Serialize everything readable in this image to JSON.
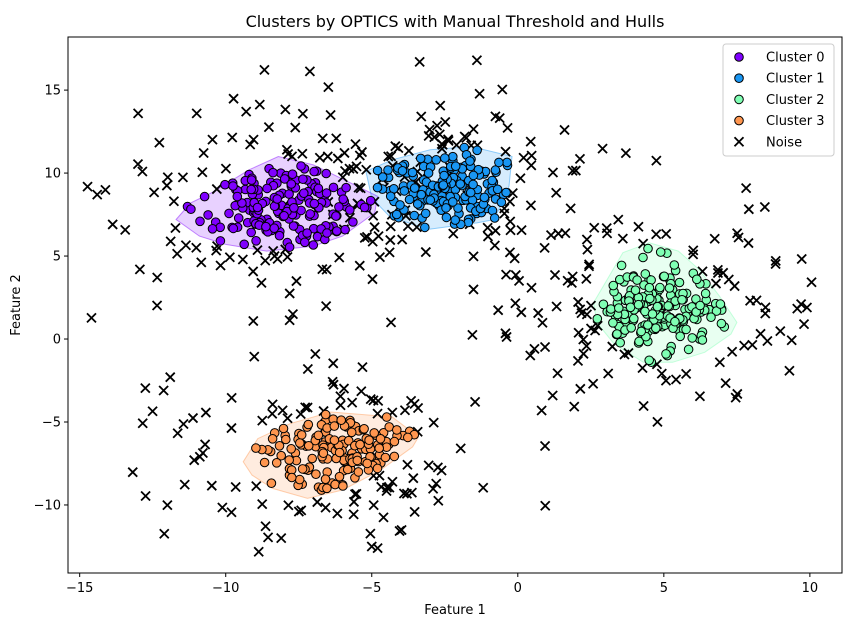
{
  "chart_data": {
    "type": "scatter",
    "title": "Clusters by OPTICS with Manual Threshold and Hulls",
    "xlabel": "Feature 1",
    "ylabel": "Feature 2",
    "xlim": [
      -15.4,
      11.1
    ],
    "ylim": [
      -14.1,
      18.2
    ],
    "xticks": [
      -15,
      -10,
      -5,
      0,
      5,
      10
    ],
    "yticks": [
      -10,
      -5,
      0,
      5,
      10,
      15
    ],
    "grid": false,
    "legend_position": "top-right",
    "clusters": [
      {
        "name": "Cluster 0",
        "color": "#8000ff",
        "center": [
          -8.0,
          8.0
        ],
        "spread": [
          1.4,
          1.5
        ],
        "count": 170,
        "seed": 11,
        "hull": [
          [
            -11.7,
            7.2
          ],
          [
            -11.2,
            8.2
          ],
          [
            -10.5,
            8.8
          ],
          [
            -9.2,
            10.2
          ],
          [
            -8.2,
            11.0
          ],
          [
            -7.0,
            10.5
          ],
          [
            -5.6,
            9.3
          ],
          [
            -4.8,
            8.6
          ],
          [
            -4.9,
            7.6
          ],
          [
            -6.0,
            6.2
          ],
          [
            -7.0,
            5.6
          ],
          [
            -8.6,
            5.3
          ],
          [
            -10.0,
            5.7
          ],
          [
            -10.9,
            6.2
          ]
        ]
      },
      {
        "name": "Cluster 1",
        "color": "#1996f3",
        "center": [
          -2.4,
          8.9
        ],
        "spread": [
          1.4,
          1.3
        ],
        "count": 170,
        "seed": 23,
        "hull": [
          [
            -5.2,
            10.1
          ],
          [
            -4.3,
            10.8
          ],
          [
            -3.0,
            11.4
          ],
          [
            -1.6,
            11.6
          ],
          [
            -0.2,
            11.0
          ],
          [
            -0.3,
            9.2
          ],
          [
            -0.8,
            7.2
          ],
          [
            -1.4,
            7.0
          ],
          [
            -3.1,
            6.6
          ],
          [
            -4.4,
            7.4
          ],
          [
            -5.0,
            8.5
          ]
        ]
      },
      {
        "name": "Cluster 2",
        "color": "#80ffb4",
        "center": [
          4.9,
          1.9
        ],
        "spread": [
          1.2,
          1.5
        ],
        "count": 190,
        "seed": 37,
        "hull": [
          [
            2.6,
            2.2
          ],
          [
            3.1,
            3.7
          ],
          [
            3.6,
            5.2
          ],
          [
            4.5,
            5.8
          ],
          [
            5.5,
            5.3
          ],
          [
            6.2,
            4.2
          ],
          [
            6.9,
            2.6
          ],
          [
            7.5,
            1.0
          ],
          [
            7.3,
            0.3
          ],
          [
            6.4,
            -0.8
          ],
          [
            5.3,
            -1.4
          ],
          [
            4.3,
            -1.4
          ],
          [
            3.3,
            -0.3
          ],
          [
            2.7,
            1.0
          ]
        ]
      },
      {
        "name": "Cluster 3",
        "color": "#ff964f",
        "center": [
          -6.3,
          -6.7
        ],
        "spread": [
          1.6,
          1.2
        ],
        "count": 160,
        "seed": 53,
        "hull": [
          [
            -9.4,
            -7.4
          ],
          [
            -8.9,
            -6.0
          ],
          [
            -7.8,
            -5.1
          ],
          [
            -6.4,
            -4.4
          ],
          [
            -4.3,
            -4.7
          ],
          [
            -3.4,
            -5.9
          ],
          [
            -3.6,
            -6.5
          ],
          [
            -4.7,
            -7.9
          ],
          [
            -6.0,
            -9.1
          ],
          [
            -7.2,
            -9.6
          ],
          [
            -8.4,
            -9.0
          ],
          [
            -9.1,
            -8.2
          ]
        ]
      }
    ],
    "noise": {
      "name": "Noise",
      "color": "#000000",
      "seed": 97,
      "groups": [
        {
          "center": [
            -8.0,
            8.0
          ],
          "spread": [
            2.9,
            3.0
          ],
          "count": 110,
          "exclude_r": 1.0
        },
        {
          "center": [
            -2.4,
            9.2
          ],
          "spread": [
            2.2,
            2.4
          ],
          "count": 75,
          "exclude_r": 1.0
        },
        {
          "center": [
            4.8,
            1.9
          ],
          "spread": [
            2.7,
            2.8
          ],
          "count": 110,
          "exclude_r": 1.0
        },
        {
          "center": [
            -6.3,
            -6.9
          ],
          "spread": [
            2.6,
            2.6
          ],
          "count": 100,
          "exclude_r": 1.0
        }
      ],
      "extra_points": [
        [
          -1.4,
          16.8
        ],
        [
          -13.0,
          13.6
        ],
        [
          -9.3,
          13.7
        ],
        [
          -14.4,
          8.7
        ],
        [
          9.7,
          2.1
        ],
        [
          9.9,
          1.9
        ],
        [
          9.8,
          0.9
        ],
        [
          -7.7,
          1.5
        ],
        [
          -11.9,
          -2.3
        ],
        [
          -5.0,
          -12.5
        ],
        [
          -4.8,
          -12.6
        ],
        [
          -8.1,
          -12.0
        ],
        [
          3.7,
          11.2
        ],
        [
          1.6,
          12.6
        ]
      ]
    }
  }
}
